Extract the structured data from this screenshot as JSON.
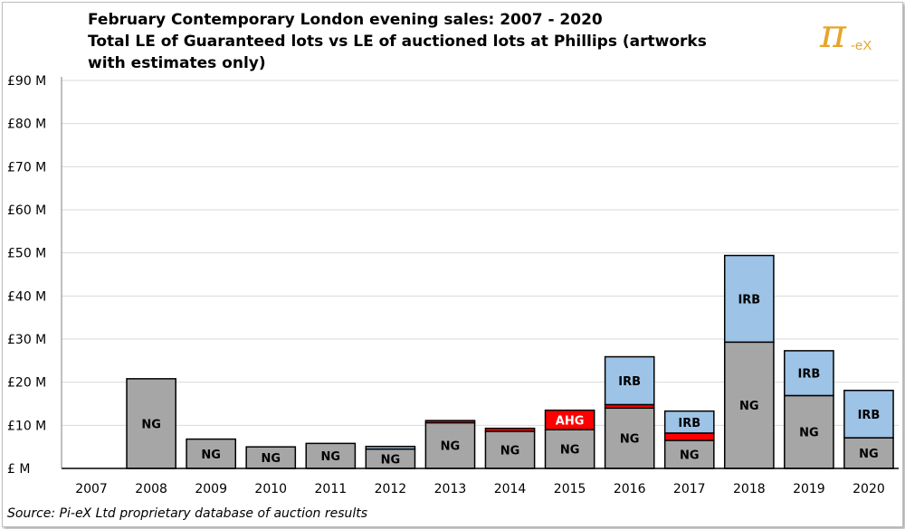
{
  "chart_data": {
    "type": "bar",
    "stacked": true,
    "title_lines": [
      "February Contemporary London evening sales: 2007 - 2020",
      "Total LE of Guaranteed lots vs LE of auctioned lots at Phillips  (artworks",
      "with estimates only)"
    ],
    "categories": [
      "2007",
      "2008",
      "2009",
      "2010",
      "2011",
      "2012",
      "2013",
      "2014",
      "2015",
      "2016",
      "2017",
      "2018",
      "2019",
      "2020"
    ],
    "series": [
      {
        "name": "NG",
        "color": "#a6a6a6",
        "values": [
          0,
          20.8,
          6.8,
          5.0,
          5.8,
          4.5,
          10.6,
          8.6,
          9.0,
          14.0,
          6.5,
          29.3,
          16.9,
          7.1
        ],
        "labels": [
          "",
          "NG",
          "NG",
          "NG",
          "NG",
          "NG",
          "NG",
          "NG",
          "NG",
          "NG",
          "NG",
          "NG",
          "NG",
          "NG"
        ]
      },
      {
        "name": "AHG",
        "color": "#ff0000",
        "values": [
          0,
          0,
          0,
          0,
          0,
          0,
          0.5,
          0.7,
          4.5,
          0.8,
          1.7,
          0,
          0,
          0
        ],
        "labels": [
          "",
          "",
          "",
          "",
          "",
          "",
          "",
          "",
          "AHG",
          "",
          "",
          "",
          "",
          ""
        ]
      },
      {
        "name": "IRB",
        "color": "#9dc3e6",
        "values": [
          0,
          0,
          0,
          0,
          0,
          0.6,
          0,
          0,
          0,
          11.1,
          5.1,
          20.1,
          10.4,
          11.0
        ],
        "labels": [
          "",
          "",
          "",
          "",
          "",
          "",
          "",
          "",
          "",
          "IRB",
          "IRB",
          "IRB",
          "IRB",
          "IRB"
        ]
      }
    ],
    "ylim": [
      0,
      90
    ],
    "ytick_values": [
      0,
      10,
      20,
      30,
      40,
      50,
      60,
      70,
      80,
      90
    ],
    "ytick_labels": [
      "£ M",
      "£10 M",
      "£20 M",
      "£30 M",
      "£40 M",
      "£50 M",
      "£60 M",
      "£70 M",
      "£80 M",
      "£90 M"
    ],
    "grid": true,
    "source_note": "Source:  Pi-eX Ltd proprietary database of auction results",
    "logo": {
      "symbol": "π",
      "suffix": "-eX"
    }
  }
}
